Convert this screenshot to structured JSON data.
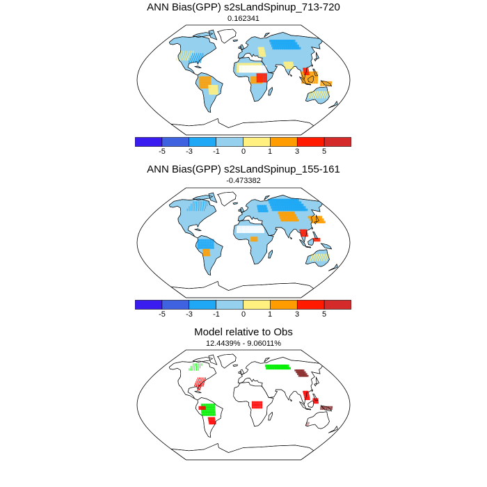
{
  "panels": [
    {
      "title": "ANN Bias(GPP) s2sLandSpinup_713-720",
      "subtitle": "0.162341"
    },
    {
      "title": "ANN Bias(GPP) s2sLandSpinup_155-161",
      "subtitle": "-0.473382"
    },
    {
      "title": "Model relative to Obs",
      "subtitle": "12.4439% - 9.06011%"
    }
  ],
  "colorbar": {
    "colors": [
      "#3b1cf0",
      "#3f63e0",
      "#1ea8f5",
      "#96d0ef",
      "#fff080",
      "#ff9d00",
      "#ff1a00",
      "#d42a2a"
    ],
    "labels": [
      "-5",
      "-3",
      "-1",
      "0",
      "1",
      "3",
      "5"
    ]
  },
  "bias_colors": {
    "low": "#96d0ef",
    "mid": "#1ea8f5",
    "high": "#fff080",
    "orange": "#ff9d00",
    "red": "#ff1a00",
    "white": "#ffffff"
  },
  "relative_colors": {
    "better": "#00ee00",
    "worse": "#ff0000",
    "dark": "#8b2f2f"
  }
}
